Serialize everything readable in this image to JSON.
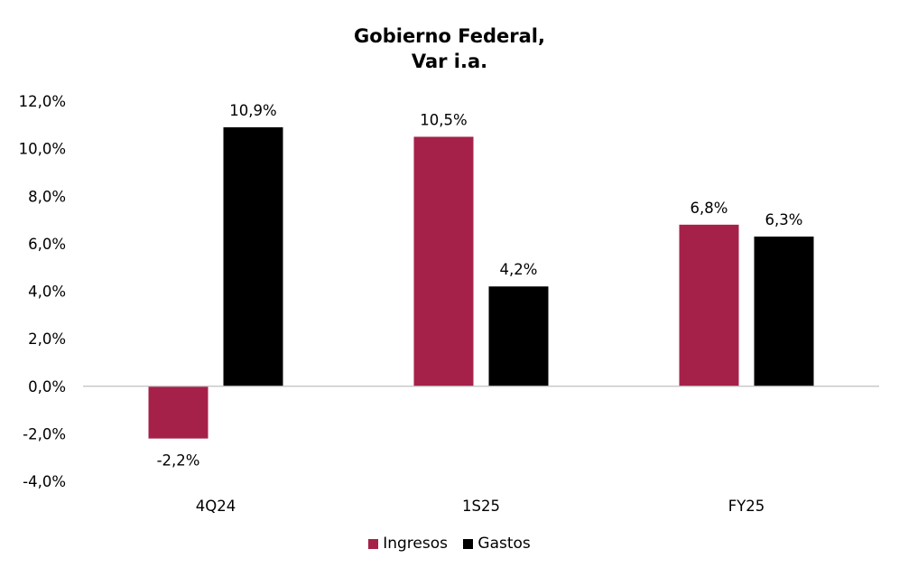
{
  "chart_data": {
    "type": "bar",
    "title_lines": [
      "Gobierno Federal,",
      "Var i.a."
    ],
    "categories": [
      "4Q24",
      "1S25",
      "FY25"
    ],
    "series": [
      {
        "name": "Ingresos",
        "color": "#A6214A",
        "values": [
          -2.2,
          10.5,
          6.8
        ],
        "labels": [
          "-2,2%",
          "10,5%",
          "6,8%"
        ]
      },
      {
        "name": "Gastos",
        "color": "#000000",
        "values": [
          10.9,
          4.2,
          6.3
        ],
        "labels": [
          "10,9%",
          "4,2%",
          "6,3%"
        ]
      }
    ],
    "ylim": [
      -4,
      12
    ],
    "yticks": [
      12,
      10,
      8,
      6,
      4,
      2,
      0,
      -2,
      -4
    ],
    "ytick_labels": [
      "12,0%",
      "10,0%",
      "8,0%",
      "6,0%",
      "4,0%",
      "2,0%",
      "0,0%",
      "-2,0%",
      "-4,0%"
    ],
    "grid": false,
    "legend_position": "bottom"
  }
}
